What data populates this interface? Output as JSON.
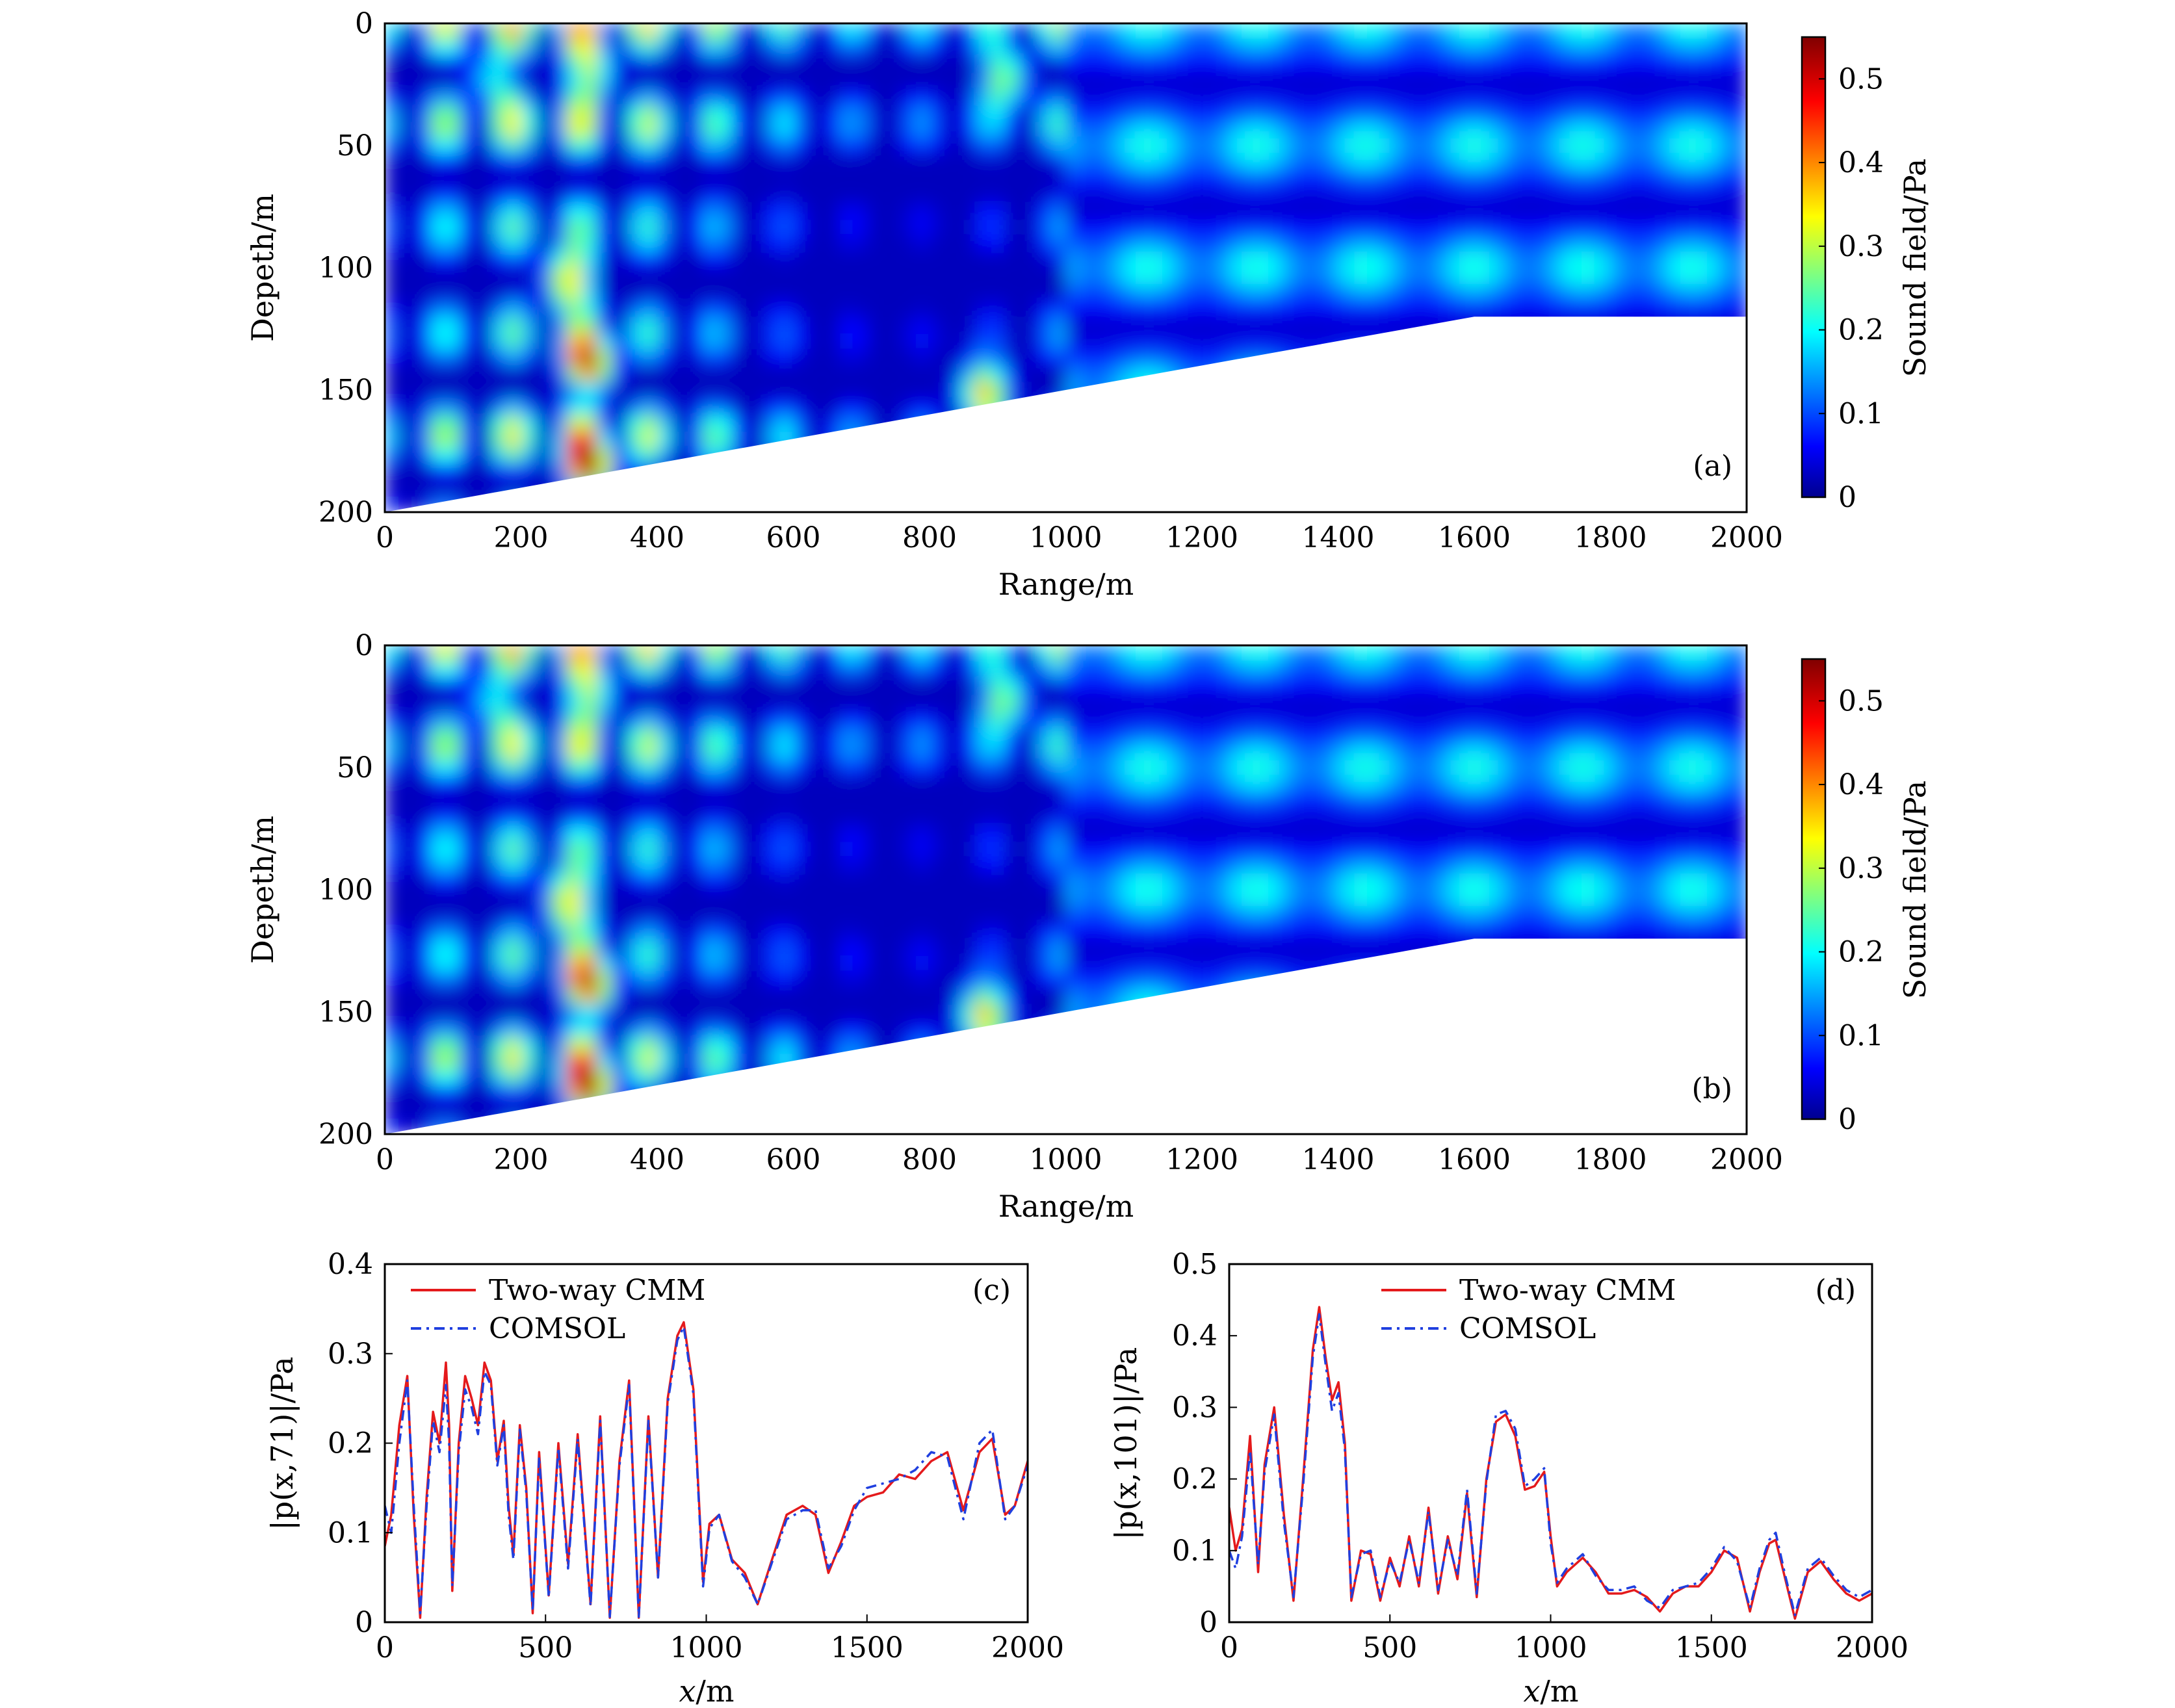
{
  "chart_data": [
    {
      "id": "a",
      "type": "heatmap",
      "panel_label": "(a)",
      "xlabel": "Range/m",
      "ylabel": "Depeth/m",
      "xlim": [
        0,
        2000
      ],
      "ylim": [
        200,
        0
      ],
      "xticks": [
        "0",
        "200",
        "400",
        "600",
        "800",
        "1000",
        "1200",
        "1400",
        "1600",
        "1800",
        "2000"
      ],
      "yticks": [
        "0",
        "50",
        "100",
        "150",
        "200"
      ],
      "colorbar": {
        "label": "Sound field/Pa",
        "range": [
          0,
          0.55
        ],
        "ticks": [
          "0",
          "0.1",
          "0.2",
          "0.3",
          "0.4",
          "0.5"
        ],
        "colormap": "jet"
      },
      "bottom": {
        "range_m": [
          0,
          1600,
          2000
        ],
        "depth_m": [
          200,
          120,
          120
        ]
      }
    },
    {
      "id": "b",
      "type": "heatmap",
      "panel_label": "(b)",
      "xlabel": "Range/m",
      "ylabel": "Depeth/m",
      "xlim": [
        0,
        2000
      ],
      "ylim": [
        200,
        0
      ],
      "xticks": [
        "0",
        "200",
        "400",
        "600",
        "800",
        "1000",
        "1200",
        "1400",
        "1600",
        "1800",
        "2000"
      ],
      "yticks": [
        "0",
        "50",
        "100",
        "150",
        "200"
      ],
      "colorbar": {
        "label": "Sound field/Pa",
        "range": [
          0,
          0.55
        ],
        "ticks": [
          "0",
          "0.1",
          "0.2",
          "0.3",
          "0.4",
          "0.5"
        ],
        "colormap": "jet"
      },
      "bottom": {
        "range_m": [
          0,
          1600,
          2000
        ],
        "depth_m": [
          200,
          120,
          120
        ]
      }
    },
    {
      "id": "c",
      "type": "line",
      "panel_label": "(c)",
      "xlabel_var": "x",
      "xlabel_unit": "/m",
      "ylabel": "|p(x,71)|/Pa",
      "xlim": [
        0,
        2000
      ],
      "ylim": [
        0,
        0.4
      ],
      "xticks": [
        "0",
        "500",
        "1000",
        "1500",
        "2000"
      ],
      "yticks": [
        "0",
        "0.1",
        "0.2",
        "0.3",
        "0.4"
      ],
      "legend": [
        "Two-way CMM",
        "COMSOL"
      ],
      "series": [
        {
          "name": "Two-way CMM",
          "color": "#e41a1c",
          "x": [
            0,
            20,
            45,
            70,
            90,
            110,
            130,
            150,
            170,
            190,
            200,
            210,
            230,
            250,
            270,
            290,
            310,
            330,
            350,
            370,
            385,
            400,
            420,
            440,
            460,
            480,
            510,
            540,
            570,
            600,
            640,
            670,
            700,
            730,
            760,
            790,
            820,
            850,
            880,
            910,
            930,
            960,
            990,
            1010,
            1040,
            1080,
            1120,
            1160,
            1200,
            1250,
            1300,
            1340,
            1380,
            1420,
            1460,
            1500,
            1550,
            1600,
            1650,
            1700,
            1750,
            1800,
            1850,
            1890,
            1930,
            1960,
            2000
          ],
          "values": [
            0.085,
            0.12,
            0.22,
            0.275,
            0.12,
            0.005,
            0.14,
            0.235,
            0.2,
            0.29,
            0.22,
            0.035,
            0.2,
            0.275,
            0.25,
            0.22,
            0.29,
            0.27,
            0.18,
            0.225,
            0.13,
            0.075,
            0.22,
            0.15,
            0.01,
            0.19,
            0.03,
            0.2,
            0.065,
            0.21,
            0.02,
            0.23,
            0.005,
            0.18,
            0.27,
            0.005,
            0.23,
            0.05,
            0.25,
            0.32,
            0.335,
            0.26,
            0.045,
            0.11,
            0.12,
            0.07,
            0.055,
            0.02,
            0.065,
            0.12,
            0.13,
            0.12,
            0.055,
            0.09,
            0.13,
            0.14,
            0.145,
            0.165,
            0.16,
            0.18,
            0.19,
            0.125,
            0.19,
            0.205,
            0.12,
            0.13,
            0.18
          ]
        },
        {
          "name": "COMSOL",
          "color": "#1f3fdf",
          "x": [
            0,
            20,
            45,
            70,
            90,
            110,
            130,
            150,
            170,
            190,
            200,
            210,
            230,
            250,
            270,
            290,
            310,
            330,
            350,
            370,
            385,
            400,
            420,
            440,
            460,
            480,
            510,
            540,
            570,
            600,
            640,
            670,
            700,
            730,
            760,
            790,
            820,
            850,
            880,
            910,
            930,
            960,
            990,
            1010,
            1040,
            1080,
            1120,
            1160,
            1200,
            1250,
            1300,
            1340,
            1380,
            1420,
            1460,
            1500,
            1550,
            1600,
            1650,
            1700,
            1750,
            1800,
            1850,
            1890,
            1930,
            1960,
            2000
          ],
          "values": [
            0.13,
            0.1,
            0.2,
            0.27,
            0.13,
            0.01,
            0.13,
            0.225,
            0.19,
            0.265,
            0.2,
            0.04,
            0.19,
            0.26,
            0.24,
            0.21,
            0.28,
            0.265,
            0.175,
            0.22,
            0.12,
            0.07,
            0.215,
            0.145,
            0.012,
            0.185,
            0.028,
            0.195,
            0.06,
            0.205,
            0.018,
            0.225,
            0.006,
            0.175,
            0.265,
            0.006,
            0.225,
            0.05,
            0.245,
            0.315,
            0.33,
            0.255,
            0.04,
            0.105,
            0.12,
            0.068,
            0.05,
            0.02,
            0.062,
            0.115,
            0.125,
            0.125,
            0.06,
            0.085,
            0.125,
            0.15,
            0.155,
            0.16,
            0.17,
            0.19,
            0.185,
            0.115,
            0.2,
            0.215,
            0.115,
            0.13,
            0.175
          ]
        }
      ]
    },
    {
      "id": "d",
      "type": "line",
      "panel_label": "(d)",
      "xlabel_var": "x",
      "xlabel_unit": "/m",
      "ylabel": "|p(x,101)|/Pa",
      "xlim": [
        0,
        2000
      ],
      "ylim": [
        0,
        0.5
      ],
      "xticks": [
        "0",
        "500",
        "1000",
        "1500",
        "2000"
      ],
      "yticks": [
        "0",
        "0.1",
        "0.2",
        "0.3",
        "0.4",
        "0.5"
      ],
      "legend": [
        "Two-way CMM",
        "COMSOL"
      ],
      "series": [
        {
          "name": "Two-way CMM",
          "color": "#e41a1c",
          "x": [
            0,
            20,
            40,
            65,
            90,
            110,
            140,
            170,
            200,
            230,
            260,
            280,
            300,
            320,
            340,
            360,
            380,
            410,
            440,
            470,
            500,
            530,
            560,
            590,
            620,
            650,
            680,
            710,
            740,
            770,
            800,
            830,
            860,
            890,
            920,
            950,
            980,
            1000,
            1020,
            1050,
            1100,
            1140,
            1180,
            1220,
            1260,
            1300,
            1340,
            1380,
            1420,
            1460,
            1500,
            1540,
            1580,
            1620,
            1650,
            1680,
            1700,
            1730,
            1760,
            1800,
            1840,
            1880,
            1920,
            1960,
            2000
          ],
          "values": [
            0.16,
            0.1,
            0.13,
            0.26,
            0.07,
            0.22,
            0.3,
            0.15,
            0.03,
            0.2,
            0.38,
            0.44,
            0.37,
            0.31,
            0.335,
            0.25,
            0.03,
            0.1,
            0.095,
            0.03,
            0.09,
            0.05,
            0.12,
            0.05,
            0.16,
            0.04,
            0.12,
            0.06,
            0.18,
            0.035,
            0.2,
            0.28,
            0.29,
            0.26,
            0.185,
            0.19,
            0.21,
            0.12,
            0.05,
            0.07,
            0.09,
            0.07,
            0.04,
            0.04,
            0.045,
            0.035,
            0.015,
            0.04,
            0.05,
            0.05,
            0.07,
            0.1,
            0.09,
            0.015,
            0.07,
            0.11,
            0.115,
            0.06,
            0.005,
            0.07,
            0.085,
            0.06,
            0.04,
            0.03,
            0.04
          ]
        },
        {
          "name": "COMSOL",
          "color": "#1f3fdf",
          "x": [
            0,
            20,
            40,
            65,
            90,
            110,
            140,
            170,
            200,
            230,
            260,
            280,
            300,
            320,
            340,
            360,
            380,
            410,
            440,
            470,
            500,
            530,
            560,
            590,
            620,
            650,
            680,
            710,
            740,
            770,
            800,
            830,
            860,
            890,
            920,
            950,
            980,
            1000,
            1020,
            1050,
            1100,
            1140,
            1180,
            1220,
            1260,
            1300,
            1340,
            1380,
            1420,
            1460,
            1500,
            1540,
            1580,
            1620,
            1650,
            1680,
            1700,
            1730,
            1760,
            1800,
            1840,
            1880,
            1920,
            1960,
            2000
          ],
          "values": [
            0.1,
            0.075,
            0.12,
            0.24,
            0.08,
            0.21,
            0.29,
            0.14,
            0.035,
            0.19,
            0.37,
            0.43,
            0.36,
            0.295,
            0.32,
            0.24,
            0.035,
            0.095,
            0.1,
            0.035,
            0.085,
            0.055,
            0.115,
            0.055,
            0.155,
            0.045,
            0.115,
            0.065,
            0.185,
            0.04,
            0.195,
            0.29,
            0.295,
            0.27,
            0.19,
            0.2,
            0.215,
            0.11,
            0.055,
            0.075,
            0.095,
            0.065,
            0.045,
            0.045,
            0.05,
            0.03,
            0.02,
            0.045,
            0.05,
            0.055,
            0.075,
            0.105,
            0.085,
            0.02,
            0.075,
            0.115,
            0.125,
            0.065,
            0.01,
            0.075,
            0.09,
            0.065,
            0.045,
            0.035,
            0.045
          ]
        }
      ]
    }
  ]
}
